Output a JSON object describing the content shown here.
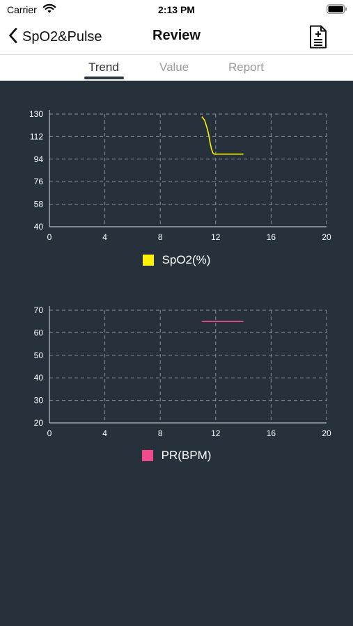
{
  "status_bar": {
    "carrier": "Carrier",
    "time": "2:13 PM",
    "wifi_icon": "wifi-icon",
    "battery_icon": "battery-icon"
  },
  "nav": {
    "back_label": "SpO2&Pulse",
    "title": "Review",
    "back_icon": "chevron-left-icon",
    "report_icon": "add-document-icon"
  },
  "tabs": [
    {
      "label": "Trend",
      "active": true
    },
    {
      "label": "Value",
      "active": false
    },
    {
      "label": "Report",
      "active": false
    }
  ],
  "colors": {
    "background": "#26313b",
    "grid": "#8a939b",
    "axis": "#d9dde0",
    "spo2": "#fff200",
    "pr": "#f24b8c",
    "text": "#ffffff"
  },
  "chart_data": [
    {
      "type": "line",
      "legend_label": "SpO2(%)",
      "series_color": "#fff200",
      "x_ticks": [
        0,
        4,
        8,
        12,
        16,
        20
      ],
      "y_ticks": [
        130,
        112,
        94,
        76,
        58,
        40
      ],
      "xlim": [
        0,
        20
      ],
      "ylim": [
        40,
        130
      ],
      "grid": true,
      "series": [
        {
          "x": [
            11.0,
            11.2,
            11.4,
            11.5,
            11.6,
            11.7,
            11.8,
            11.9,
            12.0,
            12.3,
            12.6,
            13.0,
            13.5,
            14.0
          ],
          "y": [
            128,
            125,
            118,
            113,
            107,
            102,
            99,
            98,
            98,
            98,
            98,
            98,
            98,
            98
          ]
        }
      ]
    },
    {
      "type": "line",
      "legend_label": "PR(BPM)",
      "series_color": "#f24b8c",
      "x_ticks": [
        0,
        4,
        8,
        12,
        16,
        20
      ],
      "y_ticks": [
        70,
        60,
        50,
        40,
        30,
        20
      ],
      "xlim": [
        0,
        20
      ],
      "ylim": [
        20,
        70
      ],
      "grid": true,
      "series": [
        {
          "x": [
            11.0,
            14.0
          ],
          "y": [
            65,
            65
          ]
        }
      ]
    }
  ]
}
